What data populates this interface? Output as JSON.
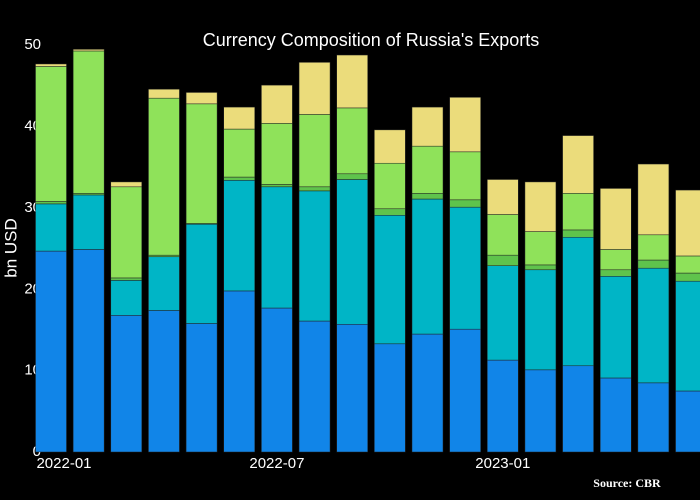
{
  "chart_data": {
    "type": "stacked-bar",
    "title": "Currency Composition of Russia's Exports",
    "y_label": "bn USD",
    "source": "Source: CBR",
    "x": [
      "2022-01",
      "2022-02",
      "2022-03",
      "2022-04",
      "2022-05",
      "2022-06",
      "2022-07",
      "2022-08",
      "2022-09",
      "2022-10",
      "2022-11",
      "2022-12",
      "2023-01",
      "2023-02",
      "2023-03",
      "2023-04",
      "2023-05",
      "2023-06"
    ],
    "xticks": [
      "2022-01",
      "2022-07",
      "2023-01"
    ],
    "ylim": [
      0,
      52
    ],
    "yticks": [
      0,
      10,
      20,
      30,
      40,
      50
    ],
    "series": [
      {
        "color": "#1185e8",
        "values": [
          24.7,
          24.9,
          16.8,
          17.4,
          15.8,
          19.8,
          17.7,
          16.1,
          15.7,
          13.3,
          14.5,
          15.1,
          11.3,
          10.1,
          10.6,
          9.1,
          8.5,
          7.5
        ]
      },
      {
        "color": "#00b5c6",
        "values": [
          5.8,
          6.7,
          4.3,
          6.6,
          12.2,
          13.6,
          14.9,
          16.0,
          17.8,
          15.8,
          16.6,
          15.0,
          11.6,
          12.3,
          15.8,
          12.5,
          14.1,
          13.5
        ]
      },
      {
        "color": "#5fc34c",
        "values": [
          0.3,
          0.2,
          0.3,
          0.2,
          0.1,
          0.4,
          0.3,
          0.5,
          0.7,
          0.8,
          0.7,
          0.9,
          1.3,
          0.6,
          0.9,
          0.8,
          1.0,
          1.0
        ]
      },
      {
        "color": "#8fe25a",
        "values": [
          16.6,
          17.5,
          11.2,
          19.3,
          14.7,
          5.9,
          7.5,
          8.9,
          8.1,
          5.6,
          5.8,
          5.9,
          5.0,
          4.1,
          4.5,
          2.5,
          3.1,
          2.1
        ]
      },
      {
        "color": "#ebdc7b",
        "values": [
          0.3,
          0.2,
          0.6,
          1.1,
          1.4,
          2.7,
          4.7,
          6.4,
          6.5,
          4.1,
          4.8,
          6.7,
          4.3,
          6.1,
          7.1,
          7.5,
          8.7,
          8.1
        ]
      }
    ]
  }
}
